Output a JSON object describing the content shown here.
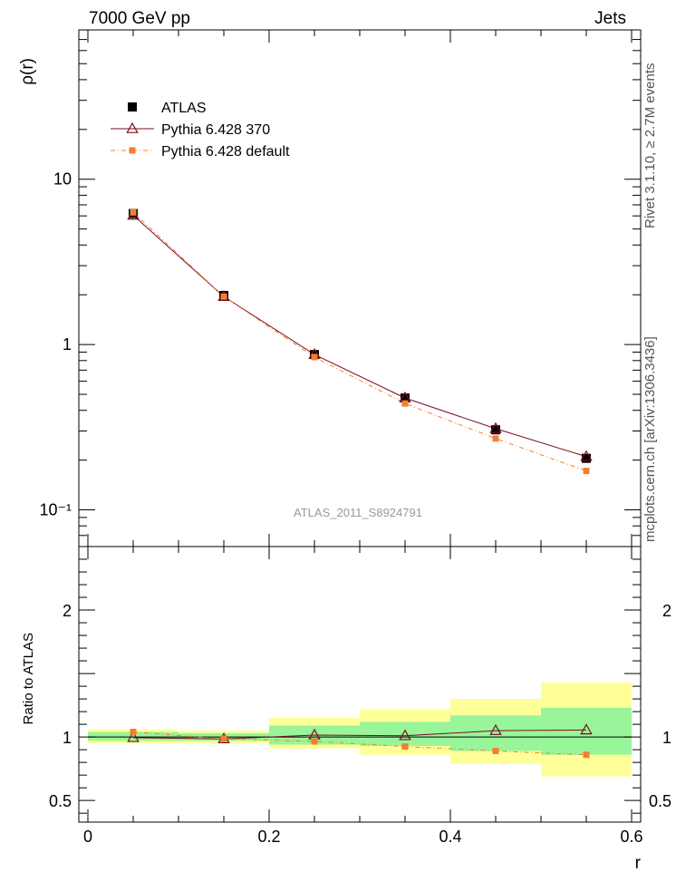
{
  "header": {
    "left_title": "7000 GeV pp",
    "right_title": "Jets"
  },
  "side_labels": {
    "rivet": "Rivet 3.1.10, ≥ 2.7M events",
    "mcplots": "mcplots.cern.ch [arXiv:1306.3436]"
  },
  "watermark": "ATLAS_2011_S8924791",
  "chart_data": [
    {
      "type": "line",
      "panel": "main",
      "ylabel": "ρ(r)",
      "xlabel": "r",
      "yscale": "log",
      "ylim": [
        0.06,
        80
      ],
      "xlim": [
        -0.01,
        0.61
      ],
      "yticks": [
        {
          "value": 10,
          "label": "10"
        },
        {
          "value": 1,
          "label": "1"
        },
        {
          "value": 0.1,
          "label": "10⁻¹"
        }
      ],
      "legend_position": "top-left",
      "x": [
        0.05,
        0.15,
        0.25,
        0.35,
        0.45,
        0.55
      ],
      "series": [
        {
          "name": "ATLAS",
          "style": "data",
          "marker": "square",
          "color": "#000000",
          "values": [
            6.2,
            1.98,
            0.87,
            0.475,
            0.305,
            0.205
          ]
        },
        {
          "name": "Pythia 6.428 370",
          "style": "line",
          "marker": "triangle",
          "color": "#7a0c20",
          "values": [
            6.05,
            1.95,
            0.87,
            0.475,
            0.31,
            0.21
          ]
        },
        {
          "name": "Pythia 6.428 default",
          "style": "dash-dot",
          "marker": "square",
          "color": "#f08030",
          "values": [
            6.3,
            1.95,
            0.84,
            0.44,
            0.27,
            0.172
          ]
        }
      ]
    },
    {
      "type": "line",
      "panel": "ratio",
      "ylabel": "Ratio to ATLAS",
      "xlabel": "r",
      "ylim": [
        0.33,
        2.5
      ],
      "xlim": [
        -0.01,
        0.61
      ],
      "yticks": [
        {
          "value": 2,
          "label": "2"
        },
        {
          "value": 1,
          "label": "1"
        },
        {
          "value": 0.5,
          "label": "0.5"
        }
      ],
      "xticks": [
        {
          "value": 0,
          "label": "0"
        },
        {
          "value": 0.2,
          "label": "0.2"
        },
        {
          "value": 0.4,
          "label": "0.4"
        },
        {
          "value": 0.6,
          "label": "0.6"
        }
      ],
      "x": [
        0.05,
        0.15,
        0.25,
        0.35,
        0.45,
        0.55
      ],
      "bins": [
        [
          0.0,
          0.1
        ],
        [
          0.1,
          0.2
        ],
        [
          0.2,
          0.3
        ],
        [
          0.3,
          0.4
        ],
        [
          0.4,
          0.5
        ],
        [
          0.5,
          0.6
        ]
      ],
      "bands": {
        "stat_green": [
          [
            0.97,
            1.04
          ],
          [
            0.97,
            1.03
          ],
          [
            0.94,
            1.09
          ],
          [
            0.93,
            1.12
          ],
          [
            0.89,
            1.17
          ],
          [
            0.86,
            1.23
          ]
        ],
        "total_yellow": [
          [
            0.95,
            1.06
          ],
          [
            0.95,
            1.05
          ],
          [
            0.91,
            1.15
          ],
          [
            0.86,
            1.22
          ],
          [
            0.79,
            1.3
          ],
          [
            0.69,
            1.43
          ]
        ]
      },
      "series": [
        {
          "name": "Pythia 6.428 370",
          "style": "line",
          "marker": "triangle",
          "color": "#7a0c20",
          "values": [
            0.995,
            0.985,
            1.015,
            1.01,
            1.05,
            1.055
          ]
        },
        {
          "name": "Pythia 6.428 default",
          "style": "dash-dot",
          "marker": "square",
          "color": "#f08030",
          "values": [
            1.04,
            0.985,
            0.965,
            0.925,
            0.89,
            0.86
          ]
        }
      ]
    }
  ]
}
